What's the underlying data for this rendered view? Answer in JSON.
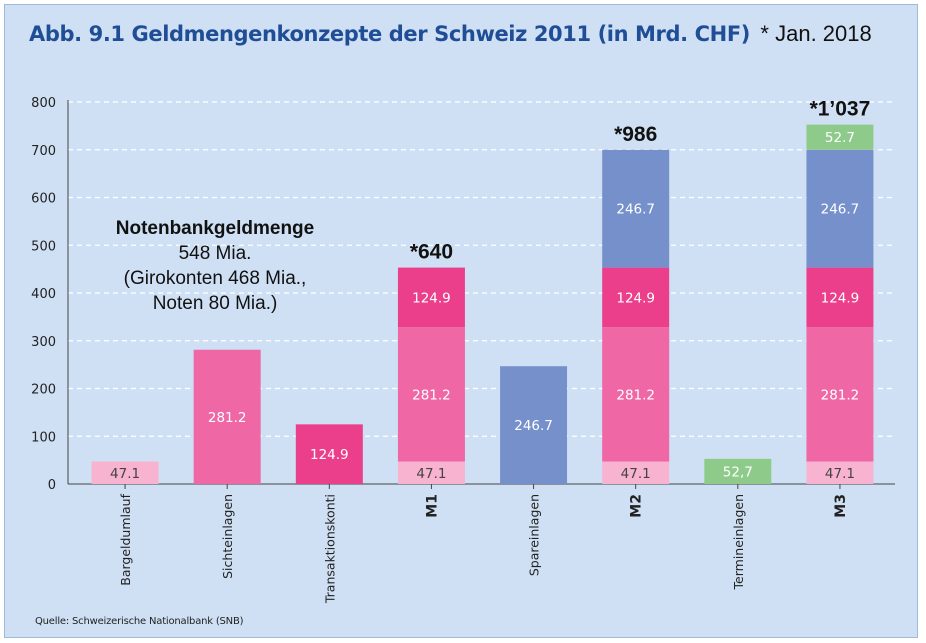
{
  "title": "Abb. 9.1  Geldmengenkonzepte der Schweiz 2011 (in Mrd. CHF)",
  "title_note": "* Jan. 2018",
  "source": "Quelle: Schweizerische Nationalbank (SNB)",
  "annotation": {
    "title": "Notenbankgeldmenge",
    "lines": [
      "548 Mia.",
      "(Girokonten 468 Mia.,",
      "Noten 80 Mia.)"
    ]
  },
  "colors": {
    "background": "#cfe0f4",
    "title": "#1f4d96",
    "bargeld": "#f7b3cf",
    "sicht": "#f067a6",
    "transaktion": "#ec3f8b",
    "spar": "#7690cb",
    "termin": "#8ecb8b"
  },
  "chart_data": {
    "type": "bar",
    "stacked": true,
    "categories": [
      "Bargeldumlauf",
      "Sichteinlagen",
      "Transaktionskonti",
      "M1",
      "Spareinlagen",
      "M2",
      "Termineinlagen",
      "M3"
    ],
    "bold_categories": [
      "M1",
      "M2",
      "M3"
    ],
    "ylim": [
      0,
      800
    ],
    "yticks": [
      "0",
      "100",
      "200",
      "300",
      "400",
      "500",
      "600",
      "700",
      "800"
    ],
    "grid": true,
    "bars": [
      {
        "category": "Bargeldumlauf",
        "segments": [
          {
            "component": "bargeld",
            "value": 47.1,
            "label": "47.1"
          }
        ]
      },
      {
        "category": "Sichteinlagen",
        "segments": [
          {
            "component": "sicht",
            "value": 281.2,
            "label": "281.2"
          }
        ]
      },
      {
        "category": "Transaktionskonti",
        "segments": [
          {
            "component": "transaktion",
            "value": 124.9,
            "label": "124.9"
          }
        ]
      },
      {
        "category": "M1",
        "top_label": "*640",
        "segments": [
          {
            "component": "bargeld",
            "value": 47.1,
            "label": "47.1"
          },
          {
            "component": "sicht",
            "value": 281.2,
            "label": "281.2"
          },
          {
            "component": "transaktion",
            "value": 124.9,
            "label": "124.9"
          }
        ]
      },
      {
        "category": "Spareinlagen",
        "segments": [
          {
            "component": "spar",
            "value": 246.7,
            "label": "246.7"
          }
        ]
      },
      {
        "category": "M2",
        "top_label": "*986",
        "segments": [
          {
            "component": "bargeld",
            "value": 47.1,
            "label": "47.1"
          },
          {
            "component": "sicht",
            "value": 281.2,
            "label": "281.2"
          },
          {
            "component": "transaktion",
            "value": 124.9,
            "label": "124.9"
          },
          {
            "component": "spar",
            "value": 246.7,
            "label": "246.7"
          }
        ]
      },
      {
        "category": "Termineinlagen",
        "segments": [
          {
            "component": "termin",
            "value": 52.7,
            "label": "52,7"
          }
        ]
      },
      {
        "category": "M3",
        "top_label": "*1’037",
        "segments": [
          {
            "component": "bargeld",
            "value": 47.1,
            "label": "47.1"
          },
          {
            "component": "sicht",
            "value": 281.2,
            "label": "281.2"
          },
          {
            "component": "transaktion",
            "value": 124.9,
            "label": "124.9"
          },
          {
            "component": "spar",
            "value": 246.7,
            "label": "246.7"
          },
          {
            "component": "termin",
            "value": 52.7,
            "label": "52.7"
          }
        ]
      }
    ]
  }
}
